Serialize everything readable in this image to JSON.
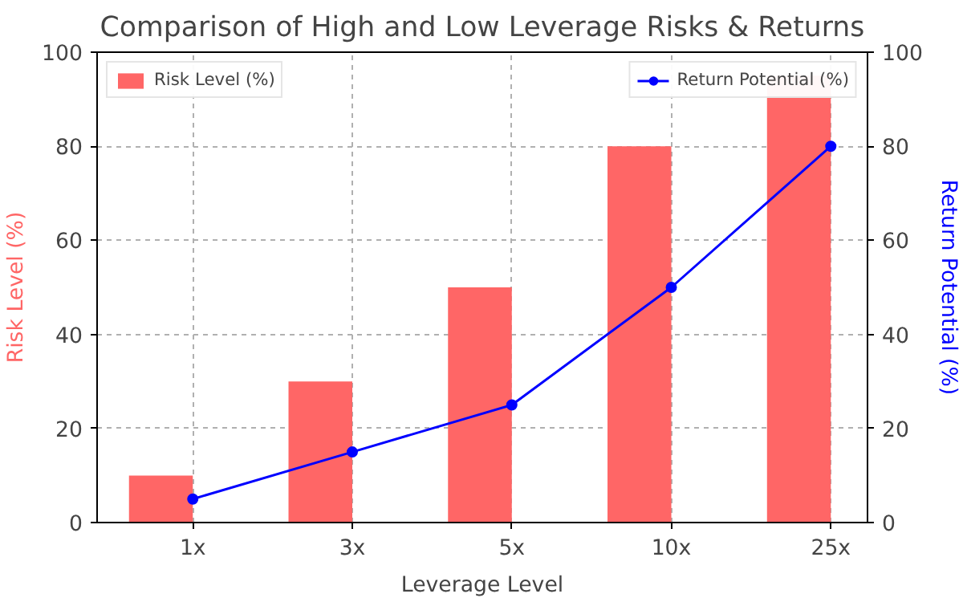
{
  "chart_data": {
    "type": "bar",
    "title": "Comparison of High and Low Leverage Risks & Returns",
    "xlabel": "Leverage Level",
    "ylabel": "Risk Level (%)",
    "y2label": "Return Potential (%)",
    "categories": [
      "1x",
      "3x",
      "5x",
      "10x",
      "25x"
    ],
    "series": [
      {
        "name": "Risk Level (%)",
        "color": "#ff6666",
        "values": [
          10,
          30,
          50,
          80,
          95
        ]
      },
      {
        "name": "Return Potential (%)",
        "color": "#0000ff",
        "type": "line",
        "axis": "y2",
        "marker": "circle",
        "values": [
          5,
          15,
          25,
          50,
          80
        ]
      }
    ],
    "ylim": [
      0,
      100
    ],
    "yticks": [
      0,
      20,
      40,
      60,
      80,
      100
    ],
    "y2lim": [
      0,
      100
    ],
    "y2ticks": [
      0,
      20,
      40,
      60,
      80,
      100
    ],
    "grid": true,
    "legend": "top"
  }
}
